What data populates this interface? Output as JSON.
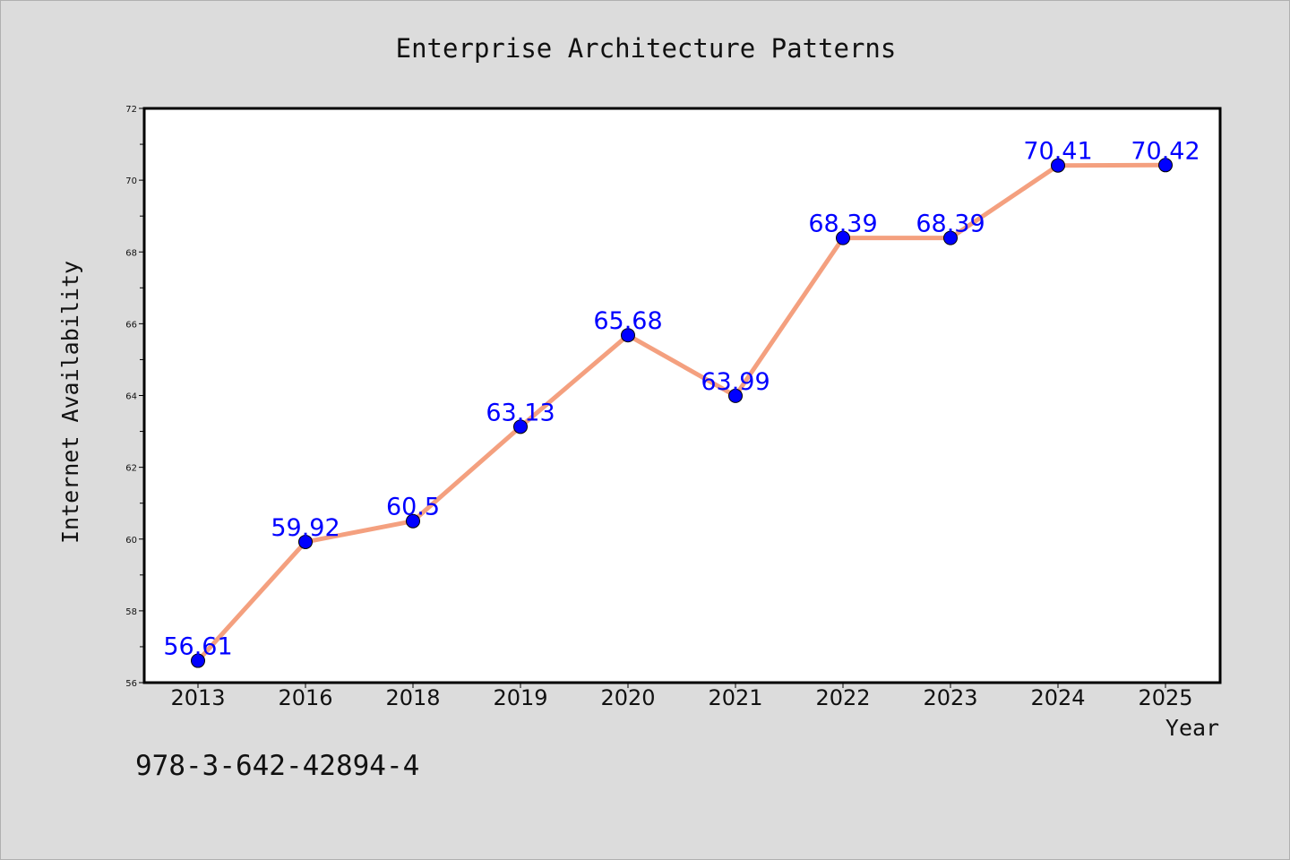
{
  "chart_data": {
    "type": "line",
    "title": "Enterprise Architecture Patterns",
    "xlabel": "Year",
    "ylabel": "Internet Availability",
    "categories": [
      "2013",
      "2016",
      "2018",
      "2019",
      "2020",
      "2021",
      "2022",
      "2023",
      "2024",
      "2025"
    ],
    "series": [
      {
        "values": [
          56.61,
          59.92,
          60.5,
          63.13,
          65.68,
          63.99,
          68.39,
          68.39,
          70.41,
          70.42
        ]
      }
    ],
    "data_labels": [
      "56.61",
      "59.92",
      "60.5",
      "63.13",
      "65.68",
      "63.99",
      "68.39",
      "68.39",
      "70.41",
      "70.42"
    ],
    "ylim": [
      56,
      72
    ],
    "yticks": [
      56,
      58,
      60,
      62,
      64,
      66,
      68,
      70,
      72
    ],
    "grid": false,
    "legend": "none",
    "colors": {
      "line": "#f4a07f",
      "marker": "#0000ff",
      "data_label": "#0000ff",
      "background": "#dcdcdc",
      "plot_background": "#ffffff"
    }
  },
  "footnote": "978-3-642-42894-4"
}
